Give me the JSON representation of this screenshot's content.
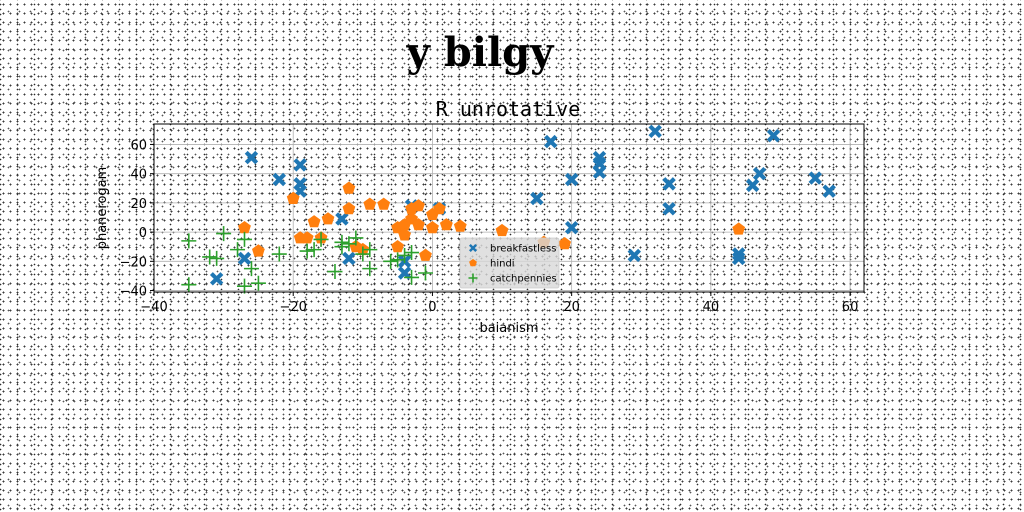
{
  "chart_data": {
    "type": "scatter",
    "suptitle": "y bilgy",
    "title": "R unrotative",
    "xlabel": "baianism",
    "ylabel": "phanerogam",
    "xlim": [
      -40,
      62
    ],
    "ylim": [
      -41,
      74
    ],
    "xticks": [
      -40,
      -20,
      0,
      20,
      40,
      60
    ],
    "yticks": [
      -40,
      -20,
      0,
      20,
      40,
      60
    ],
    "grid": true,
    "legend_position": "lower-center",
    "series": [
      {
        "name": "breakfastless",
        "color": "#1f77b4",
        "marker": "X",
        "points": [
          [
            -26,
            51
          ],
          [
            -22,
            36
          ],
          [
            -19,
            46
          ],
          [
            -19,
            33
          ],
          [
            -19,
            28
          ],
          [
            -13,
            9
          ],
          [
            -12,
            -18
          ],
          [
            -27,
            -18
          ],
          [
            -31,
            -32
          ],
          [
            -4,
            -20
          ],
          [
            -4,
            -28
          ],
          [
            -3,
            18
          ],
          [
            1,
            16
          ],
          [
            15,
            23
          ],
          [
            17,
            62
          ],
          [
            20,
            36
          ],
          [
            20,
            3
          ],
          [
            24,
            51
          ],
          [
            24,
            47
          ],
          [
            24,
            41
          ],
          [
            29,
            -16
          ],
          [
            32,
            69
          ],
          [
            34,
            33
          ],
          [
            34,
            16
          ],
          [
            44,
            -15
          ],
          [
            44,
            -18
          ],
          [
            46,
            32
          ],
          [
            47,
            40
          ],
          [
            49,
            66
          ],
          [
            55,
            37
          ],
          [
            57,
            28
          ]
        ]
      },
      {
        "name": "hindi",
        "color": "#ff7f0e",
        "marker": "pentagon",
        "points": [
          [
            -27,
            3
          ],
          [
            -25,
            -13
          ],
          [
            -20,
            23
          ],
          [
            -19,
            -4
          ],
          [
            -18,
            -4
          ],
          [
            -17,
            7
          ],
          [
            -16,
            -4
          ],
          [
            -15,
            9
          ],
          [
            -12,
            30
          ],
          [
            -12,
            16
          ],
          [
            -11,
            -10
          ],
          [
            -10,
            -12
          ],
          [
            -9,
            19
          ],
          [
            -7,
            19
          ],
          [
            -5,
            3
          ],
          [
            -5,
            -10
          ],
          [
            -4,
            5
          ],
          [
            -4,
            -2
          ],
          [
            -3,
            9
          ],
          [
            -3,
            16
          ],
          [
            -2,
            18
          ],
          [
            -2,
            5
          ],
          [
            -1,
            -16
          ],
          [
            0,
            3
          ],
          [
            0,
            12
          ],
          [
            1,
            16
          ],
          [
            2,
            5
          ],
          [
            4,
            4
          ],
          [
            10,
            1
          ],
          [
            16,
            -7
          ],
          [
            19,
            -8
          ],
          [
            44,
            2
          ]
        ]
      },
      {
        "name": "catchpennies",
        "color": "#2ca02c",
        "marker": "plus",
        "points": [
          [
            -35,
            -6
          ],
          [
            -35,
            -36
          ],
          [
            -32,
            -17
          ],
          [
            -31,
            -18
          ],
          [
            -30,
            -1
          ],
          [
            -28,
            -12
          ],
          [
            -27,
            -5
          ],
          [
            -27,
            -37
          ],
          [
            -26,
            -25
          ],
          [
            -25,
            -35
          ],
          [
            -22,
            -15
          ],
          [
            -18,
            -13
          ],
          [
            -17,
            -12
          ],
          [
            -16,
            -5
          ],
          [
            -14,
            -27
          ],
          [
            -13,
            -7
          ],
          [
            -13,
            -10
          ],
          [
            -12,
            -8
          ],
          [
            -11,
            -4
          ],
          [
            -10,
            -15
          ],
          [
            -9,
            -25
          ],
          [
            -9,
            -12
          ],
          [
            -6,
            -20
          ],
          [
            -5,
            -19
          ],
          [
            -4,
            -16
          ],
          [
            -3,
            -31
          ],
          [
            -3,
            -14
          ],
          [
            -1,
            -28
          ]
        ]
      }
    ]
  }
}
